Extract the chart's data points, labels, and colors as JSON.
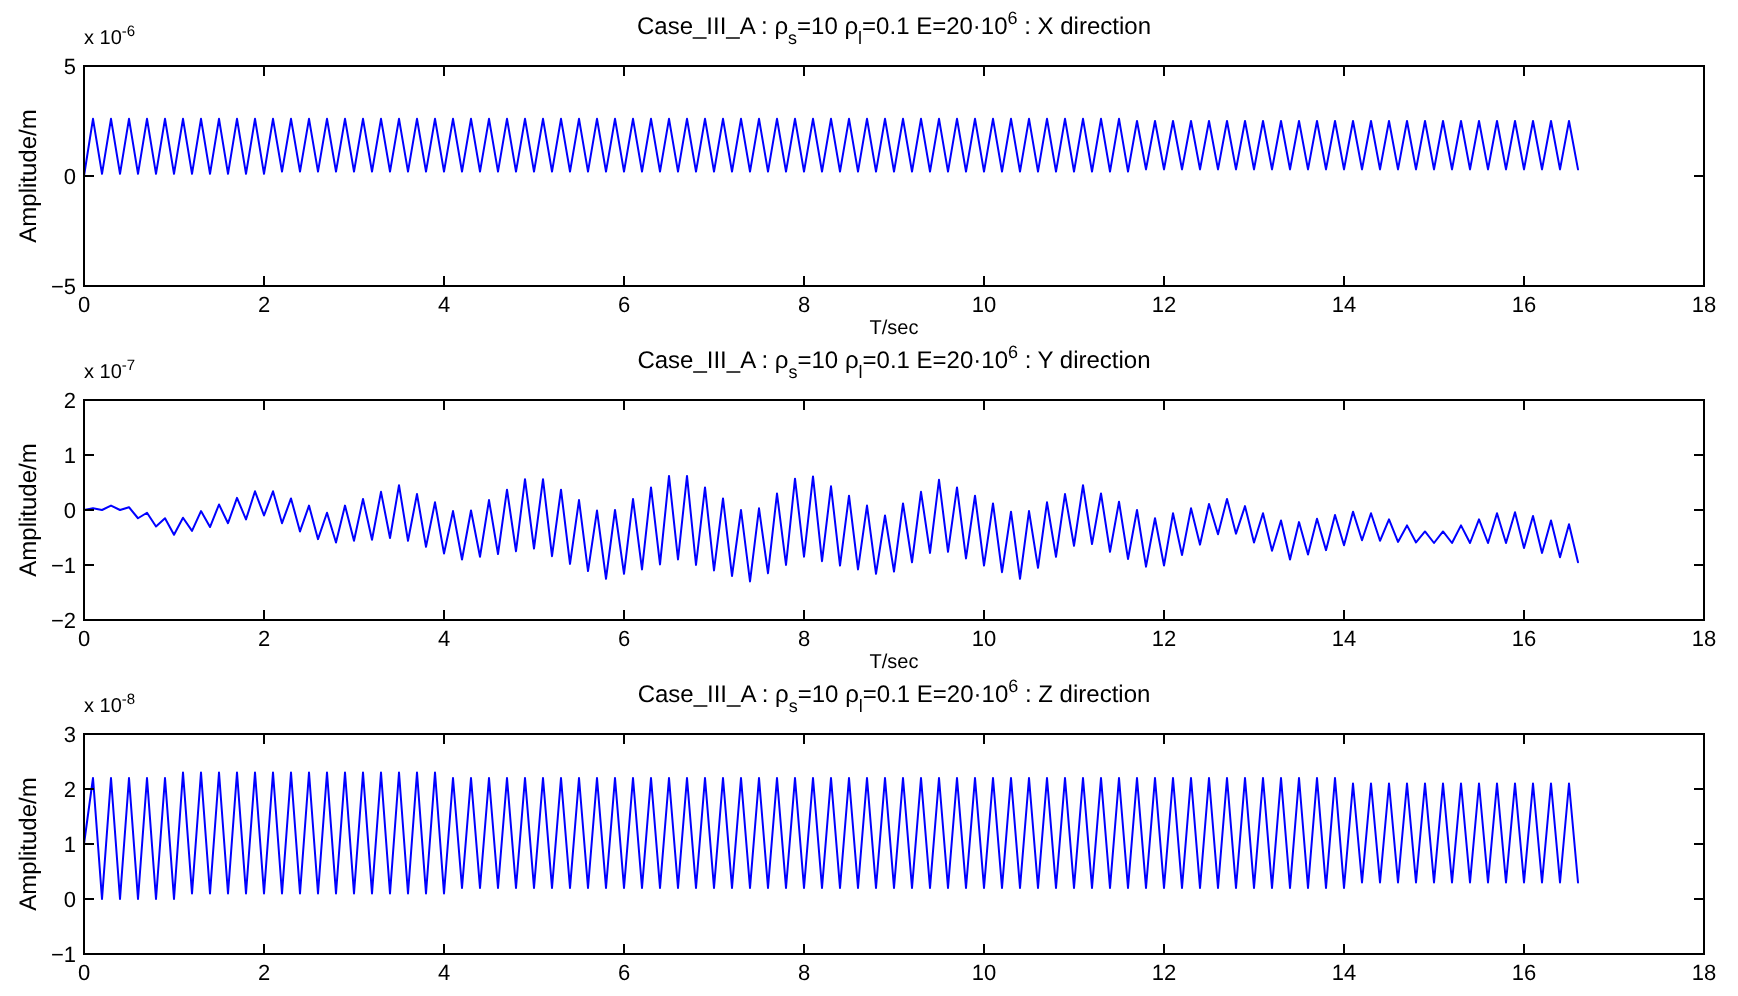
{
  "chart_data": [
    {
      "type": "line",
      "title": "Case_III_A : ρ$_{s}$=10 ρ$_{l}$=0.1   E=20·10$^{6}$  : X direction",
      "xlabel": "T/sec",
      "ylabel": "Amplitude/m",
      "annotations": [
        "x 10$^{-6}$"
      ],
      "xlim": [
        0,
        18
      ],
      "xticks": [
        0,
        2,
        4,
        6,
        8,
        10,
        12,
        14,
        16,
        18
      ],
      "ylim": [
        -5,
        5
      ],
      "yticks": [
        -5,
        0,
        5
      ],
      "x": [
        0,
        0.1,
        0.2,
        0.3,
        0.4,
        0.5,
        0.6,
        0.7,
        0.8,
        0.9,
        1,
        1.1,
        1.2,
        1.3,
        1.4,
        1.5,
        1.6,
        1.7,
        1.8,
        1.9,
        2,
        2.1,
        2.2,
        2.3,
        2.4,
        2.5,
        2.6,
        2.7,
        2.8,
        2.9,
        3,
        3.1,
        3.2,
        3.3,
        3.4,
        3.5,
        3.6,
        3.7,
        3.8,
        3.9,
        4,
        4.1,
        4.2,
        4.3,
        4.4,
        4.5,
        4.6,
        4.7,
        4.8,
        4.9,
        5,
        5.1,
        5.2,
        5.3,
        5.4,
        5.5,
        5.6,
        5.7,
        5.8,
        5.9,
        6,
        6.1,
        6.2,
        6.3,
        6.4,
        6.5,
        6.6,
        6.7,
        6.8,
        6.9,
        7,
        7.1,
        7.2,
        7.3,
        7.4,
        7.5,
        7.6,
        7.7,
        7.8,
        7.9,
        8,
        8.1,
        8.2,
        8.3,
        8.4,
        8.5,
        8.6,
        8.7,
        8.8,
        8.9,
        9,
        9.1,
        9.2,
        9.3,
        9.4,
        9.5,
        9.6,
        9.7,
        9.8,
        9.9,
        10,
        10.1,
        10.2,
        10.3,
        10.4,
        10.5,
        10.6,
        10.7,
        10.8,
        10.9,
        11,
        11.1,
        11.2,
        11.3,
        11.4,
        11.5,
        11.6,
        11.7,
        11.8,
        11.9,
        12,
        12.1,
        12.2,
        12.3,
        12.4,
        12.5,
        12.6,
        12.7,
        12.8,
        12.9,
        13,
        13.1,
        13.2,
        13.3,
        13.4,
        13.5,
        13.6,
        13.7,
        13.8,
        13.9,
        14,
        14.1,
        14.2,
        14.3,
        14.4,
        14.5,
        14.6,
        14.7,
        14.8,
        14.9,
        15,
        15.1,
        15.2,
        15.3,
        15.4,
        15.5,
        15.6,
        15.7,
        15.8,
        15.9,
        16,
        16.1,
        16.2,
        16.3,
        16.4,
        16.5,
        16.6
      ],
      "series": [
        {
          "color": "#0000ff",
          "values": [
            0,
            2.6,
            0.1,
            2.6,
            0.1,
            2.6,
            0.1,
            2.6,
            0.1,
            2.6,
            0.1,
            2.6,
            0.1,
            2.6,
            0.1,
            2.6,
            0.1,
            2.6,
            0.1,
            2.6,
            0.1,
            2.6,
            0.2,
            2.6,
            0.2,
            2.6,
            0.2,
            2.6,
            0.2,
            2.6,
            0.2,
            2.6,
            0.2,
            2.6,
            0.2,
            2.6,
            0.2,
            2.6,
            0.2,
            2.6,
            0.2,
            2.6,
            0.2,
            2.6,
            0.2,
            2.6,
            0.2,
            2.6,
            0.2,
            2.6,
            0.2,
            2.6,
            0.2,
            2.6,
            0.2,
            2.6,
            0.2,
            2.6,
            0.2,
            2.6,
            0.2,
            2.6,
            0.2,
            2.6,
            0.2,
            2.6,
            0.2,
            2.6,
            0.2,
            2.6,
            0.2,
            2.6,
            0.2,
            2.6,
            0.2,
            2.6,
            0.2,
            2.6,
            0.2,
            2.6,
            0.2,
            2.6,
            0.2,
            2.6,
            0.2,
            2.6,
            0.2,
            2.6,
            0.2,
            2.6,
            0.2,
            2.6,
            0.2,
            2.6,
            0.2,
            2.6,
            0.2,
            2.6,
            0.2,
            2.6,
            0.2,
            2.6,
            0.2,
            2.6,
            0.2,
            2.6,
            0.2,
            2.6,
            0.2,
            2.6,
            0.2,
            2.6,
            0.2,
            2.6,
            0.2,
            2.6,
            0.2,
            2.5,
            0.3,
            2.5,
            0.3,
            2.5,
            0.3,
            2.5,
            0.3,
            2.5,
            0.3,
            2.5,
            0.3,
            2.5,
            0.3,
            2.5,
            0.3,
            2.5,
            0.3,
            2.5,
            0.3,
            2.5,
            0.3,
            2.5,
            0.3,
            2.5,
            0.3,
            2.5,
            0.3,
            2.5,
            0.3,
            2.5,
            0.3,
            2.5,
            0.3,
            2.5,
            0.3,
            2.5,
            0.3,
            2.5,
            0.3,
            2.5,
            0.3,
            2.5,
            0.3,
            2.5,
            0.3,
            2.5,
            0.3,
            2.5,
            0.3
          ]
        }
      ]
    },
    {
      "type": "line",
      "title": "Case_III_A : ρ$_{s}$=10 ρ$_{l}$=0.1   E=20·10$^{6}$  : Y direction",
      "xlabel": "T/sec",
      "ylabel": "Amplitude/m",
      "annotations": [
        "x 10$^{-7}$"
      ],
      "xlim": [
        0,
        18
      ],
      "xticks": [
        0,
        2,
        4,
        6,
        8,
        10,
        12,
        14,
        16,
        18
      ],
      "ylim": [
        -2,
        2
      ],
      "yticks": [
        -2,
        -1,
        0,
        1,
        2
      ],
      "x": [
        0,
        0.1,
        0.2,
        0.3,
        0.4,
        0.5,
        0.6,
        0.7,
        0.8,
        0.9,
        1,
        1.1,
        1.2,
        1.3,
        1.4,
        1.5,
        1.6,
        1.7,
        1.8,
        1.9,
        2,
        2.1,
        2.2,
        2.3,
        2.4,
        2.5,
        2.6,
        2.7,
        2.8,
        2.9,
        3,
        3.1,
        3.2,
        3.3,
        3.4,
        3.5,
        3.6,
        3.7,
        3.8,
        3.9,
        4,
        4.1,
        4.2,
        4.3,
        4.4,
        4.5,
        4.6,
        4.7,
        4.8,
        4.9,
        5,
        5.1,
        5.2,
        5.3,
        5.4,
        5.5,
        5.6,
        5.7,
        5.8,
        5.9,
        6,
        6.1,
        6.2,
        6.3,
        6.4,
        6.5,
        6.6,
        6.7,
        6.8,
        6.9,
        7,
        7.1,
        7.2,
        7.3,
        7.4,
        7.5,
        7.6,
        7.7,
        7.8,
        7.9,
        8,
        8.1,
        8.2,
        8.3,
        8.4,
        8.5,
        8.6,
        8.7,
        8.8,
        8.9,
        9,
        9.1,
        9.2,
        9.3,
        9.4,
        9.5,
        9.6,
        9.7,
        9.8,
        9.9,
        10,
        10.1,
        10.2,
        10.3,
        10.4,
        10.5,
        10.6,
        10.7,
        10.8,
        10.9,
        11,
        11.1,
        11.2,
        11.3,
        11.4,
        11.5,
        11.6,
        11.7,
        11.8,
        11.9,
        12,
        12.1,
        12.2,
        12.3,
        12.4,
        12.5,
        12.6,
        12.7,
        12.8,
        12.9,
        13,
        13.1,
        13.2,
        13.3,
        13.4,
        13.5,
        13.6,
        13.7,
        13.8,
        13.9,
        14,
        14.1,
        14.2,
        14.3,
        14.4,
        14.5,
        14.6,
        14.7,
        14.8,
        14.9,
        15,
        15.1,
        15.2,
        15.3,
        15.4,
        15.5,
        15.6,
        15.7,
        15.8,
        15.9,
        16,
        16.1,
        16.2,
        16.3,
        16.4,
        16.5,
        16.6
      ],
      "series": [
        {
          "color": "#0000ff",
          "values": [
            0,
            0.03,
            0,
            0.08,
            0,
            0.05,
            -0.15,
            -0.05,
            -0.3,
            -0.15,
            -0.45,
            -0.14,
            -0.38,
            -0.02,
            -0.31,
            0.1,
            -0.24,
            0.22,
            -0.17,
            0.34,
            -0.1,
            0.34,
            -0.24,
            0.21,
            -0.39,
            0.08,
            -0.53,
            -0.05,
            -0.59,
            0.08,
            -0.56,
            0.2,
            -0.54,
            0.33,
            -0.51,
            0.45,
            -0.56,
            0.29,
            -0.67,
            0.14,
            -0.79,
            -0.02,
            -0.9,
            -0.01,
            -0.85,
            0.18,
            -0.8,
            0.37,
            -0.75,
            0.56,
            -0.7,
            0.56,
            -0.84,
            0.37,
            -0.98,
            0.18,
            -1.11,
            -0.01,
            -1.25,
            0,
            -1.16,
            0.2,
            -1.08,
            0.41,
            -0.99,
            0.62,
            -0.9,
            0.62,
            -1,
            0.41,
            -1.1,
            0.21,
            -1.2,
            0,
            -1.3,
            0.03,
            -1.15,
            0.3,
            -1,
            0.57,
            -0.85,
            0.61,
            -0.93,
            0.43,
            -1.01,
            0.26,
            -1.08,
            0.08,
            -1.16,
            -0.1,
            -1.12,
            0.12,
            -0.95,
            0.33,
            -0.78,
            0.55,
            -0.76,
            0.41,
            -0.88,
            0.26,
            -1.01,
            0.12,
            -1.13,
            -0.03,
            -1.25,
            -0.02,
            -1.05,
            0.14,
            -0.85,
            0.29,
            -0.65,
            0.45,
            -0.62,
            0.3,
            -0.76,
            0.15,
            -0.89,
            0,
            -1.03,
            -0.15,
            -1.01,
            -0.06,
            -0.82,
            0.03,
            -0.63,
            0.11,
            -0.44,
            0.2,
            -0.43,
            0.07,
            -0.59,
            -0.06,
            -0.74,
            -0.19,
            -0.9,
            -0.22,
            -0.81,
            -0.16,
            -0.73,
            -0.09,
            -0.64,
            -0.03,
            -0.55,
            -0.06,
            -0.56,
            -0.17,
            -0.58,
            -0.28,
            -0.59,
            -0.39,
            -0.6,
            -0.39,
            -0.6,
            -0.28,
            -0.6,
            -0.17,
            -0.6,
            -0.06,
            -0.6,
            -0.04,
            -0.69,
            -0.11,
            -0.78,
            -0.19,
            -0.86,
            -0.26,
            -0.95
          ]
        }
      ]
    },
    {
      "type": "line",
      "title": "Case_III_A : ρ$_{s}$=10 ρ$_{l}$=0.1   E=20·10$^{6}$  : Z direction",
      "ylabel": "Amplitude/m",
      "annotations": [
        "x 10$^{-8}$"
      ],
      "xlim": [
        0,
        18
      ],
      "xticks": [
        0,
        2,
        4,
        6,
        8,
        10,
        12,
        14,
        16,
        18
      ],
      "ylim": [
        -1,
        3
      ],
      "yticks": [
        -1,
        0,
        1,
        2,
        3
      ],
      "x": [
        0,
        0.1,
        0.2,
        0.3,
        0.4,
        0.5,
        0.6,
        0.7,
        0.8,
        0.9,
        1,
        1.1,
        1.2,
        1.3,
        1.4,
        1.5,
        1.6,
        1.7,
        1.8,
        1.9,
        2,
        2.1,
        2.2,
        2.3,
        2.4,
        2.5,
        2.6,
        2.7,
        2.8,
        2.9,
        3,
        3.1,
        3.2,
        3.3,
        3.4,
        3.5,
        3.6,
        3.7,
        3.8,
        3.9,
        4,
        4.1,
        4.2,
        4.3,
        4.4,
        4.5,
        4.6,
        4.7,
        4.8,
        4.9,
        5,
        5.1,
        5.2,
        5.3,
        5.4,
        5.5,
        5.6,
        5.7,
        5.8,
        5.9,
        6,
        6.1,
        6.2,
        6.3,
        6.4,
        6.5,
        6.6,
        6.7,
        6.8,
        6.9,
        7,
        7.1,
        7.2,
        7.3,
        7.4,
        7.5,
        7.6,
        7.7,
        7.8,
        7.9,
        8,
        8.1,
        8.2,
        8.3,
        8.4,
        8.5,
        8.6,
        8.7,
        8.8,
        8.9,
        9,
        9.1,
        9.2,
        9.3,
        9.4,
        9.5,
        9.6,
        9.7,
        9.8,
        9.9,
        10,
        10.1,
        10.2,
        10.3,
        10.4,
        10.5,
        10.6,
        10.7,
        10.8,
        10.9,
        11,
        11.1,
        11.2,
        11.3,
        11.4,
        11.5,
        11.6,
        11.7,
        11.8,
        11.9,
        12,
        12.1,
        12.2,
        12.3,
        12.4,
        12.5,
        12.6,
        12.7,
        12.8,
        12.9,
        13,
        13.1,
        13.2,
        13.3,
        13.4,
        13.5,
        13.6,
        13.7,
        13.8,
        13.9,
        14,
        14.1,
        14.2,
        14.3,
        14.4,
        14.5,
        14.6,
        14.7,
        14.8,
        14.9,
        15,
        15.1,
        15.2,
        15.3,
        15.4,
        15.5,
        15.6,
        15.7,
        15.8,
        15.9,
        16,
        16.1,
        16.2,
        16.3,
        16.4,
        16.5,
        16.6
      ],
      "series": [
        {
          "color": "#0000ff",
          "values": [
            1,
            2.2,
            0,
            2.2,
            0,
            2.2,
            0,
            2.2,
            0,
            2.2,
            0,
            2.3,
            0.1,
            2.3,
            0.1,
            2.3,
            0.1,
            2.3,
            0.1,
            2.3,
            0.1,
            2.3,
            0.1,
            2.3,
            0.1,
            2.3,
            0.1,
            2.3,
            0.1,
            2.3,
            0.1,
            2.3,
            0.1,
            2.3,
            0.1,
            2.3,
            0.1,
            2.3,
            0.1,
            2.3,
            0.1,
            2.2,
            0.2,
            2.2,
            0.2,
            2.2,
            0.2,
            2.2,
            0.2,
            2.2,
            0.2,
            2.2,
            0.2,
            2.2,
            0.2,
            2.2,
            0.2,
            2.2,
            0.2,
            2.2,
            0.2,
            2.2,
            0.2,
            2.2,
            0.2,
            2.2,
            0.2,
            2.2,
            0.2,
            2.2,
            0.2,
            2.2,
            0.2,
            2.2,
            0.2,
            2.2,
            0.2,
            2.2,
            0.2,
            2.2,
            0.2,
            2.2,
            0.2,
            2.2,
            0.2,
            2.2,
            0.2,
            2.2,
            0.2,
            2.2,
            0.2,
            2.2,
            0.2,
            2.2,
            0.2,
            2.2,
            0.2,
            2.2,
            0.2,
            2.2,
            0.2,
            2.2,
            0.2,
            2.2,
            0.2,
            2.2,
            0.2,
            2.2,
            0.2,
            2.2,
            0.2,
            2.2,
            0.2,
            2.2,
            0.2,
            2.2,
            0.2,
            2.2,
            0.2,
            2.2,
            0.2,
            2.2,
            0.2,
            2.2,
            0.2,
            2.2,
            0.2,
            2.2,
            0.2,
            2.2,
            0.2,
            2.2,
            0.2,
            2.2,
            0.2,
            2.2,
            0.2,
            2.2,
            0.2,
            2.2,
            0.2,
            2.1,
            0.3,
            2.1,
            0.3,
            2.1,
            0.3,
            2.1,
            0.3,
            2.1,
            0.3,
            2.1,
            0.3,
            2.1,
            0.3,
            2.1,
            0.3,
            2.1,
            0.3,
            2.1,
            0.3,
            2.1,
            0.3,
            2.1,
            0.3,
            2.1,
            0.3
          ]
        }
      ]
    }
  ]
}
